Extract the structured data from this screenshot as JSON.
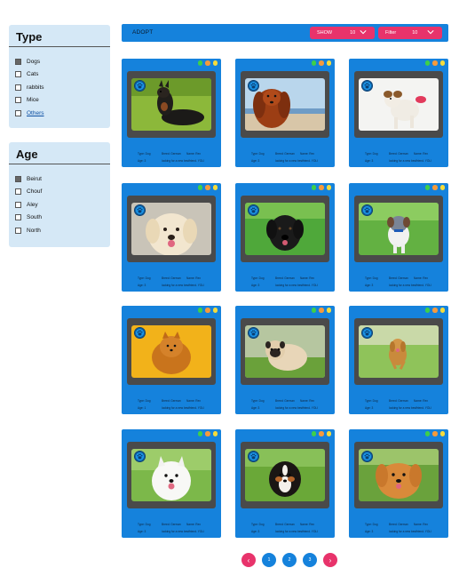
{
  "type_filter": {
    "title": "Type",
    "options": [
      {
        "label": "Dogs",
        "checked": true
      },
      {
        "label": "Cats",
        "checked": false
      },
      {
        "label": "rabbits",
        "checked": false
      },
      {
        "label": "Mice",
        "checked": false
      },
      {
        "label": "Others",
        "checked": false
      }
    ]
  },
  "age_filter": {
    "title": "Age",
    "options": [
      {
        "label": "Beirut",
        "checked": true
      },
      {
        "label": "Chouf",
        "checked": false
      },
      {
        "label": "Aley",
        "checked": false
      },
      {
        "label": "South",
        "checked": false
      },
      {
        "label": "North",
        "checked": false
      }
    ]
  },
  "header": {
    "brand": "ADOPT",
    "show_label": "SHOW",
    "show_value": "10",
    "filter_label": "Filter",
    "filter_value": "10"
  },
  "cards": [
    {
      "type": "Type: Dog",
      "breed": "Breed: German",
      "name": "Name: Rex",
      "age": "Age: 3",
      "desc": "looking for a new bestfriend. YOLI",
      "photo": "doberman-photo"
    },
    {
      "type": "Type: Dog",
      "breed": "Breed: German",
      "name": "Name: Rex",
      "age": "Age: 3",
      "desc": "looking for a new bestfriend. YOLI",
      "photo": "cavalier-photo"
    },
    {
      "type": "Type: Dog",
      "breed": "Breed: German",
      "name": "Name: Rex",
      "age": "Age: 3",
      "desc": "looking for a new bestfriend. YOLI",
      "photo": "jack-russell-photo"
    },
    {
      "type": "Type: Dog",
      "breed": "Breed: German",
      "name": "Name: Rex",
      "age": "Age: 3",
      "desc": "looking for a new bestfriend. YOLI",
      "photo": "golden-retriever-photo"
    },
    {
      "type": "Type: Dog",
      "breed": "Breed: German",
      "name": "Name: Rex",
      "age": "Age: 3",
      "desc": "looking for a new bestfriend. YOLI",
      "photo": "black-lab-photo"
    },
    {
      "type": "Type: Dog",
      "breed": "Breed: German",
      "name": "Name: Rex",
      "age": "Age: 3",
      "desc": "looking for a new bestfriend. YOLI",
      "photo": "aussie-photo"
    },
    {
      "type": "Type: Dog",
      "breed": "Breed: German",
      "name": "Name: Rex",
      "age": "Age: 1",
      "desc": "looking for a new bestfriend. YOLI",
      "photo": "pomeranian-photo"
    },
    {
      "type": "Type: Dog",
      "breed": "Breed: German",
      "name": "Name: Rex",
      "age": "Age: 3",
      "desc": "looking for a new bestfriend. YOLI",
      "photo": "pug-photo"
    },
    {
      "type": "Type: Dog",
      "breed": "Breed: German",
      "name": "Name: Rex",
      "age": "Age: 3",
      "desc": "looking for a new bestfriend. YOLI",
      "photo": "retriever-running-photo"
    },
    {
      "type": "Type: Dog",
      "breed": "Breed: German",
      "name": "Name: Rex",
      "age": "Age: 3",
      "desc": "looking for a new bestfriend. YOLI",
      "photo": "samoyed-photo"
    },
    {
      "type": "Type: Dog",
      "breed": "Breed: German",
      "name": "Name: Rex",
      "age": "Age: 3",
      "desc": "looking for a new bestfriend. YOLI",
      "photo": "bernese-photo"
    },
    {
      "type": "Type: Dog",
      "breed": "Breed: German",
      "name": "Name: Rex",
      "age": "Age: 3",
      "desc": "looking for a new bestfriend. YOLI",
      "photo": "golden-puppy-photo"
    }
  ],
  "pagination": {
    "prev": "‹",
    "pages": [
      "1",
      "2",
      "3"
    ],
    "next": "›"
  },
  "colors": {
    "accent": "#1582dc",
    "highlight": "#e8336b",
    "panel": "#d5e8f6"
  }
}
